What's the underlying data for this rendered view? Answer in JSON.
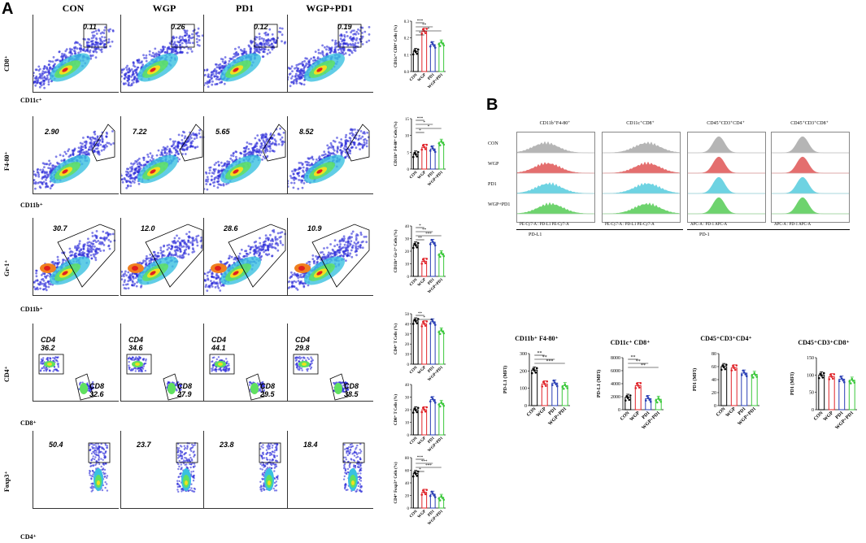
{
  "panel_a_label": "A",
  "panel_b_label": "B",
  "columns": [
    "CON",
    "WGP",
    "PD1",
    "WGP+PD1"
  ],
  "rows": [
    {
      "y_axis": "CD8⁺",
      "x_axis": "CD11c⁺",
      "gates": [
        "0.11",
        "0.26",
        "0.12",
        "0.19"
      ]
    },
    {
      "y_axis": "F4-80⁺",
      "x_axis": "CD11b⁺",
      "gates": [
        "2.90",
        "7.22",
        "5.65",
        "8.52"
      ]
    },
    {
      "y_axis": "Gr-1⁺",
      "x_axis": "CD11b⁺",
      "gates": [
        "30.7",
        "12.0",
        "28.6",
        "10.9"
      ]
    },
    {
      "y_axis": "CD4⁺",
      "x_axis": "CD8⁺",
      "gates_cd4": [
        "CD4 36.2",
        "CD4 34.6",
        "CD4 44.1",
        "CD4 29.8"
      ],
      "gates_cd8": [
        "CD8 32.6",
        "CD8 27.9",
        "CD8 29.5",
        "CD8 38.5"
      ]
    },
    {
      "y_axis": "Foxp3⁺",
      "x_axis": "CD4⁺",
      "gates": [
        "50.4",
        "23.7",
        "23.8",
        "18.4"
      ]
    }
  ],
  "groups": [
    "CON",
    "WGP",
    "PD1",
    "WGP+PD1"
  ],
  "group_colors": [
    "#000000",
    "#e0242a",
    "#2a3fb5",
    "#3cc83c"
  ],
  "chart_data": [
    {
      "type": "bar",
      "ylabel": "CD11c⁺ CD8⁺ Cells (%)",
      "categories": [
        "CON",
        "WGP",
        "PD1",
        "WGP+PD1"
      ],
      "values": [
        0.12,
        0.24,
        0.16,
        0.17
      ],
      "ylim": [
        0,
        0.3
      ],
      "yticks": [
        "0.0",
        "0.1",
        "0.2",
        "0.3"
      ],
      "sig": [
        "***",
        "**",
        "*",
        "*"
      ]
    },
    {
      "type": "bar",
      "ylabel": "CD11b⁺ F4-80⁺ Cells (%)",
      "categories": [
        "CON",
        "WGP",
        "PD1",
        "WGP+PD1"
      ],
      "values": [
        4.5,
        6.5,
        6.0,
        8.0
      ],
      "ylim": [
        0,
        15
      ],
      "yticks": [
        "0",
        "5",
        "10",
        "15"
      ],
      "sig": [
        "***",
        "*",
        "*",
        "*"
      ]
    },
    {
      "type": "bar",
      "ylabel": "CD11b⁺ Gr-1⁺ Cells (%)",
      "categories": [
        "CON",
        "WGP",
        "PD1",
        "WGP+PD1"
      ],
      "values": [
        25,
        12,
        27,
        18
      ],
      "ylim": [
        0,
        40
      ],
      "yticks": [
        "0",
        "10",
        "20",
        "30",
        "40"
      ],
      "sig": [
        "*",
        "**",
        "***",
        "**"
      ]
    },
    {
      "type": "bar",
      "ylabel": "CD4⁺ T Cells (%)",
      "categories": [
        "CON",
        "WGP",
        "PD1",
        "WGP+PD1"
      ],
      "values": [
        43,
        40,
        42,
        33
      ],
      "ylim": [
        0,
        50
      ],
      "yticks": [
        "0",
        "10",
        "20",
        "30",
        "40",
        "50"
      ],
      "sig": [
        "**",
        "*"
      ]
    },
    {
      "type": "bar",
      "ylabel": "CD8⁺ T Cells (%)",
      "categories": [
        "CON",
        "WGP",
        "PD1",
        "WGP+PD1"
      ],
      "values": [
        20,
        20,
        28,
        25
      ],
      "ylim": [
        0,
        40
      ],
      "yticks": [
        "0",
        "10",
        "20",
        "30",
        "40"
      ],
      "sig": []
    },
    {
      "type": "bar",
      "ylabel": "CD4⁺ Foxp3⁺ Cells (%)",
      "categories": [
        "CON",
        "WGP",
        "PD1",
        "WGP+PD1"
      ],
      "values": [
        55,
        25,
        22,
        17
      ],
      "ylim": [
        0,
        80
      ],
      "yticks": [
        "0",
        "20",
        "40",
        "60",
        "80"
      ],
      "sig": [
        "***",
        "***",
        "***",
        "*"
      ]
    },
    {
      "type": "bar",
      "title": "CD11b⁺ F4-80⁺",
      "ylabel": "PD-L1 (MFI)",
      "categories": [
        "CON",
        "WGP",
        "PD1",
        "WGP+PD1"
      ],
      "values": [
        205,
        125,
        130,
        115
      ],
      "ylim": [
        0,
        300
      ],
      "yticks": [
        "0",
        "100",
        "200",
        "300"
      ],
      "sig": [
        "**",
        "**",
        "***"
      ]
    },
    {
      "type": "bar",
      "title": "CD11c⁺ CD8⁺",
      "ylabel": "PD-L1 (MFI)",
      "categories": [
        "CON",
        "WGP",
        "PD1",
        "WGP+PD1"
      ],
      "values": [
        1900,
        3700,
        1700,
        1600
      ],
      "ylim": [
        0,
        8000
      ],
      "yticks": [
        "0",
        "2000",
        "4000",
        "6000",
        "8000"
      ],
      "sig": [
        "**",
        "**",
        "**"
      ]
    },
    {
      "type": "bar",
      "title": "CD45⁺CD3⁺CD4⁺",
      "ylabel": "PD1 (MFI)",
      "categories": [
        "CON",
        "WGP",
        "PD1",
        "WGP+PD1"
      ],
      "values": [
        60,
        58,
        50,
        48
      ],
      "ylim": [
        0,
        80
      ],
      "yticks": [
        "0",
        "20",
        "40",
        "60",
        "80"
      ],
      "sig": []
    },
    {
      "type": "bar",
      "title": "CD45⁺CD3⁺CD8⁺",
      "ylabel": "PD1 (MFI)",
      "categories": [
        "CON",
        "WGP",
        "PD1",
        "WGP+PD1"
      ],
      "values": [
        100,
        95,
        88,
        85
      ],
      "ylim": [
        0,
        150
      ],
      "yticks": [
        "0",
        "50",
        "100",
        "150"
      ],
      "sig": []
    }
  ],
  "histograms": {
    "col_titles": [
      "CD11b⁺F4-80⁺",
      "CD11c⁺CD8⁺",
      "CD45⁺CD3⁺CD4⁺",
      "CD45⁺CD3⁺CD8⁺"
    ],
    "row_labels": [
      "CON",
      "WGP",
      "PD1",
      "WGP+PD1"
    ],
    "row_colors": [
      "#a9a9a9",
      "#e05555",
      "#55ccdd",
      "#55cc55"
    ],
    "axis_texts": [
      "PE-Cy7-A : PD-L1 PE-Cy7-A",
      "PE-Cy7-A : PD-L1 PE-Cy7-A",
      "APC-A : PD-1 APC-A",
      "APC-A : PD-1 APC-A"
    ],
    "group_labels": [
      "PD-L1",
      "PD-1"
    ]
  }
}
